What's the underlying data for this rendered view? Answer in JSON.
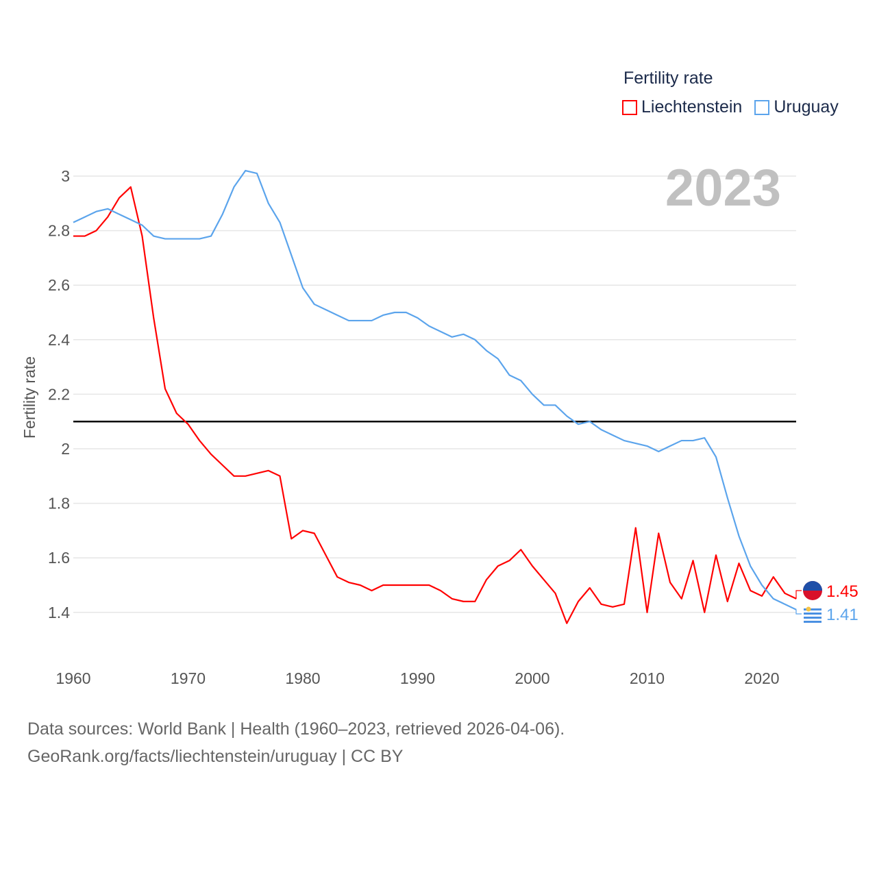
{
  "chart_data": {
    "type": "line",
    "title": "Fertility rate",
    "ylabel": "Fertility rate",
    "xlabel": "",
    "year_label": "2023",
    "xlim": [
      1960,
      2023
    ],
    "ylim": [
      1.3,
      3.05
    ],
    "x_ticks": [
      1960,
      1970,
      1980,
      1990,
      2000,
      2010,
      2020
    ],
    "y_ticks": [
      1.4,
      1.6,
      1.8,
      2,
      2.2,
      2.4,
      2.6,
      2.8,
      3
    ],
    "reference_line": 2.1,
    "grid": true,
    "legend_position": "top-right",
    "x": [
      1960,
      1961,
      1962,
      1963,
      1964,
      1965,
      1966,
      1967,
      1968,
      1969,
      1970,
      1971,
      1972,
      1973,
      1974,
      1975,
      1976,
      1977,
      1978,
      1979,
      1980,
      1981,
      1982,
      1983,
      1984,
      1985,
      1986,
      1987,
      1988,
      1989,
      1990,
      1991,
      1992,
      1993,
      1994,
      1995,
      1996,
      1997,
      1998,
      1999,
      2000,
      2001,
      2002,
      2003,
      2004,
      2005,
      2006,
      2007,
      2008,
      2009,
      2010,
      2011,
      2012,
      2013,
      2014,
      2015,
      2016,
      2017,
      2018,
      2019,
      2020,
      2021,
      2022,
      2023
    ],
    "series": [
      {
        "name": "Liechtenstein",
        "color": "#ff0000",
        "end_label": "1.45",
        "values": [
          2.78,
          2.78,
          2.8,
          2.85,
          2.92,
          2.96,
          2.78,
          2.48,
          2.22,
          2.13,
          2.09,
          2.03,
          1.98,
          1.94,
          1.9,
          1.9,
          1.91,
          1.92,
          1.9,
          1.67,
          1.7,
          1.69,
          1.61,
          1.53,
          1.51,
          1.5,
          1.48,
          1.5,
          1.5,
          1.5,
          1.5,
          1.5,
          1.48,
          1.45,
          1.44,
          1.44,
          1.52,
          1.57,
          1.59,
          1.63,
          1.57,
          1.52,
          1.47,
          1.36,
          1.44,
          1.49,
          1.43,
          1.42,
          1.43,
          1.71,
          1.4,
          1.69,
          1.51,
          1.45,
          1.59,
          1.4,
          1.61,
          1.44,
          1.58,
          1.48,
          1.46,
          1.53,
          1.47,
          1.45
        ]
      },
      {
        "name": "Uruguay",
        "color": "#5ba4ec",
        "end_label": "1.41",
        "values": [
          2.83,
          2.85,
          2.87,
          2.88,
          2.86,
          2.84,
          2.82,
          2.78,
          2.77,
          2.77,
          2.77,
          2.77,
          2.78,
          2.86,
          2.96,
          3.02,
          3.01,
          2.9,
          2.83,
          2.71,
          2.59,
          2.53,
          2.51,
          2.49,
          2.47,
          2.47,
          2.47,
          2.49,
          2.5,
          2.5,
          2.48,
          2.45,
          2.43,
          2.41,
          2.42,
          2.4,
          2.36,
          2.33,
          2.27,
          2.25,
          2.2,
          2.16,
          2.16,
          2.12,
          2.09,
          2.1,
          2.07,
          2.05,
          2.03,
          2.02,
          2.01,
          1.99,
          2.01,
          2.03,
          2.03,
          2.04,
          1.97,
          1.82,
          1.68,
          1.57,
          1.5,
          1.45,
          1.43,
          1.41
        ]
      }
    ]
  },
  "footer": {
    "line1": "Data sources: World Bank | Health (1960–2023, retrieved 2026-04-06).",
    "line2": "GeoRank.org/facts/liechtenstein/uruguay | CC BY"
  }
}
